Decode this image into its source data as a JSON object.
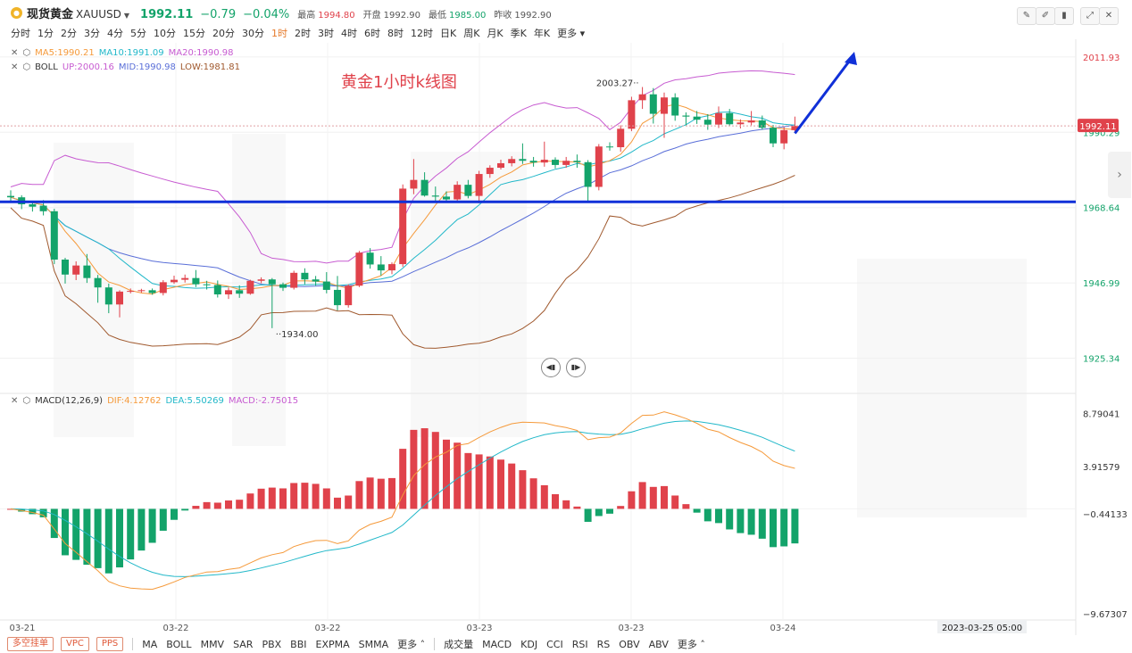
{
  "header": {
    "name": "现货黄金",
    "code": "XAUUSD",
    "last": "1992.11",
    "change": "−0.79",
    "change_pct": "−0.04%",
    "high_label": "最高",
    "high": "1994.80",
    "open_label": "开盘",
    "open": "1992.90",
    "low_label": "最低",
    "low": "1985.00",
    "prev_label": "昨收",
    "prev": "1992.90"
  },
  "periods": [
    "分时",
    "1分",
    "2分",
    "3分",
    "4分",
    "5分",
    "10分",
    "15分",
    "20分",
    "30分",
    "1时",
    "2时",
    "3时",
    "4时",
    "6时",
    "8时",
    "12时",
    "日K",
    "周K",
    "月K",
    "季K",
    "年K",
    "更多"
  ],
  "active_period": "1时",
  "ma_legend": {
    "ma5": "MA5:1990.21",
    "ma10": "MA10:1991.09",
    "ma20": "MA20:1990.98"
  },
  "boll_legend": {
    "name": "BOLL",
    "up": "UP:2000.16",
    "mid": "MID:1990.98",
    "low": "LOW:1981.81"
  },
  "macd_legend": {
    "name": "MACD(12,26,9)",
    "dif": "DIF:4.12762",
    "dea": "DEA:5.50269",
    "macd": "MACD:-2.75015"
  },
  "annotation": "黄金1小时k线图",
  "footer": {
    "buttons": [
      "多空挂单",
      "VPC",
      "PPS"
    ],
    "main_inds": [
      "MA",
      "BOLL",
      "MMV",
      "SAR",
      "PBX",
      "BBI",
      "EXPMA",
      "SMMA",
      "更多"
    ],
    "sub_inds": [
      "成交量",
      "MACD",
      "KDJ",
      "CCI",
      "RSI",
      "RS",
      "OBV",
      "ABV",
      "更多"
    ]
  },
  "colors": {
    "up": "#e0424b",
    "down": "#13a36a",
    "ma5": "#f59a3b",
    "ma10": "#22b8c9",
    "ma20": "#c75bd1",
    "boll_mid": "#5a6fd8",
    "boll_low": "#a0592e",
    "hline": "#1030d8",
    "arrow": "#1030d8"
  },
  "chart_data": {
    "type": "candlestick",
    "price_axis": {
      "ticks": [
        "2011.93",
        "1990.29",
        "1968.64",
        "1946.99",
        "1925.34"
      ],
      "ylim": [
        1915.5,
        2016.0
      ]
    },
    "last_price_tag": "1992.11",
    "horizontal_line": 1970.3,
    "high_label": "2003.27",
    "low_label": "1934.00",
    "x_labels": [
      "03-21",
      "03-22",
      "03-22",
      "03-23",
      "03-23",
      "03-24"
    ],
    "cursor_label": "2023-03-25 05:00",
    "candles": [
      [
        1972.0,
        1973.6,
        1970.5,
        1971.6
      ],
      [
        1971.6,
        1972.2,
        1968.2,
        1969.6
      ],
      [
        1969.6,
        1970.2,
        1967.5,
        1968.9
      ],
      [
        1969.2,
        1970.8,
        1966.4,
        1967.6
      ],
      [
        1967.6,
        1968.3,
        1952.4,
        1953.7
      ],
      [
        1953.7,
        1954.2,
        1946.8,
        1949.4
      ],
      [
        1949.4,
        1953.2,
        1947.8,
        1952.0
      ],
      [
        1952.0,
        1955.3,
        1947.0,
        1948.4
      ],
      [
        1948.4,
        1949.3,
        1941.3,
        1945.7
      ],
      [
        1945.7,
        1946.8,
        1938.3,
        1940.8
      ],
      [
        1940.8,
        1944.9,
        1937.1,
        1944.5
      ],
      [
        1944.5,
        1945.4,
        1944.0,
        1944.7
      ],
      [
        1944.7,
        1945.3,
        1944.2,
        1944.9
      ],
      [
        1944.9,
        1945.4,
        1943.6,
        1944.1
      ],
      [
        1944.1,
        1947.8,
        1943.4,
        1947.2
      ],
      [
        1947.2,
        1949.1,
        1946.7,
        1947.9
      ],
      [
        1947.9,
        1949.4,
        1947.1,
        1948.4
      ],
      [
        1948.4,
        1950.7,
        1945.8,
        1946.6
      ],
      [
        1946.6,
        1947.6,
        1945.1,
        1946.4
      ],
      [
        1946.4,
        1947.7,
        1942.8,
        1943.7
      ],
      [
        1943.7,
        1945.7,
        1942.4,
        1944.9
      ],
      [
        1944.9,
        1946.3,
        1942.7,
        1943.9
      ],
      [
        1943.9,
        1947.9,
        1943.6,
        1947.6
      ],
      [
        1947.6,
        1948.6,
        1946.9,
        1948.0
      ],
      [
        1948.0,
        1948.4,
        1934.0,
        1946.6
      ],
      [
        1946.6,
        1947.1,
        1944.7,
        1945.6
      ],
      [
        1945.6,
        1950.5,
        1945.1,
        1949.9
      ],
      [
        1949.9,
        1951.2,
        1946.6,
        1948.0
      ],
      [
        1948.0,
        1949.0,
        1946.2,
        1947.4
      ],
      [
        1947.4,
        1950.1,
        1944.0,
        1945.0
      ],
      [
        1945.0,
        1949.0,
        1939.1,
        1940.6
      ],
      [
        1940.6,
        1946.6,
        1939.9,
        1946.2
      ],
      [
        1946.2,
        1956.2,
        1945.8,
        1955.7
      ],
      [
        1955.7,
        1957.0,
        1951.1,
        1952.3
      ],
      [
        1952.3,
        1954.7,
        1949.1,
        1950.6
      ],
      [
        1950.6,
        1952.9,
        1949.5,
        1952.4
      ],
      [
        1952.4,
        1975.3,
        1951.6,
        1974.1
      ],
      [
        1974.1,
        1982.6,
        1972.5,
        1976.6
      ],
      [
        1976.6,
        1978.8,
        1971.8,
        1972.1
      ],
      [
        1972.1,
        1974.7,
        1970.5,
        1971.8
      ],
      [
        1971.8,
        1973.3,
        1970.3,
        1971.0
      ],
      [
        1971.0,
        1976.2,
        1970.3,
        1975.2
      ],
      [
        1975.2,
        1976.6,
        1971.3,
        1972.0
      ],
      [
        1972.0,
        1979.2,
        1969.9,
        1978.3
      ],
      [
        1978.3,
        1980.8,
        1977.2,
        1980.1
      ],
      [
        1980.1,
        1982.4,
        1979.6,
        1981.4
      ],
      [
        1981.4,
        1983.4,
        1980.5,
        1982.6
      ],
      [
        1982.6,
        1987.1,
        1981.2,
        1982.1
      ],
      [
        1982.1,
        1983.2,
        1980.4,
        1981.6
      ],
      [
        1981.6,
        1987.6,
        1980.4,
        1982.4
      ],
      [
        1982.4,
        1983.1,
        1979.9,
        1980.9
      ],
      [
        1980.9,
        1983.2,
        1980.1,
        1982.1
      ],
      [
        1982.1,
        1983.9,
        1980.1,
        1981.7
      ],
      [
        1981.7,
        1982.3,
        1970.5,
        1974.6
      ],
      [
        1974.6,
        1986.9,
        1973.6,
        1986.2
      ],
      [
        1986.2,
        1987.4,
        1985.0,
        1986.0
      ],
      [
        1986.0,
        1992.3,
        1984.7,
        1991.3
      ],
      [
        1991.3,
        2000.5,
        1990.6,
        1999.5
      ],
      [
        1999.5,
        2003.3,
        1997.0,
        2001.2
      ],
      [
        2001.2,
        2003.0,
        1992.8,
        1995.6
      ],
      [
        1995.6,
        2001.7,
        1988.7,
        2000.3
      ],
      [
        2000.3,
        2001.5,
        1993.6,
        1995.1
      ],
      [
        1995.1,
        1996.0,
        1992.3,
        1994.8
      ],
      [
        1994.8,
        1996.4,
        1992.7,
        1993.9
      ],
      [
        1993.9,
        1995.5,
        1991.0,
        1992.5
      ],
      [
        1992.5,
        1997.7,
        1991.5,
        1995.8
      ],
      [
        1995.8,
        1997.0,
        1992.2,
        1992.6
      ],
      [
        1992.6,
        1994.0,
        1991.4,
        1993.1
      ],
      [
        1993.1,
        1996.4,
        1992.3,
        1993.7
      ],
      [
        1993.7,
        1995.1,
        1991.0,
        1991.6
      ],
      [
        1991.6,
        1992.4,
        1986.0,
        1987.1
      ],
      [
        1987.1,
        1991.8,
        1985.4,
        1990.9
      ],
      [
        1990.9,
        1994.8,
        1990.3,
        1992.1
      ]
    ],
    "macd_axis": {
      "ticks": [
        "8.79041",
        "3.91579",
        "−0.44133",
        "−9.67307"
      ],
      "ylim": [
        -10.25,
        9.25
      ]
    }
  }
}
